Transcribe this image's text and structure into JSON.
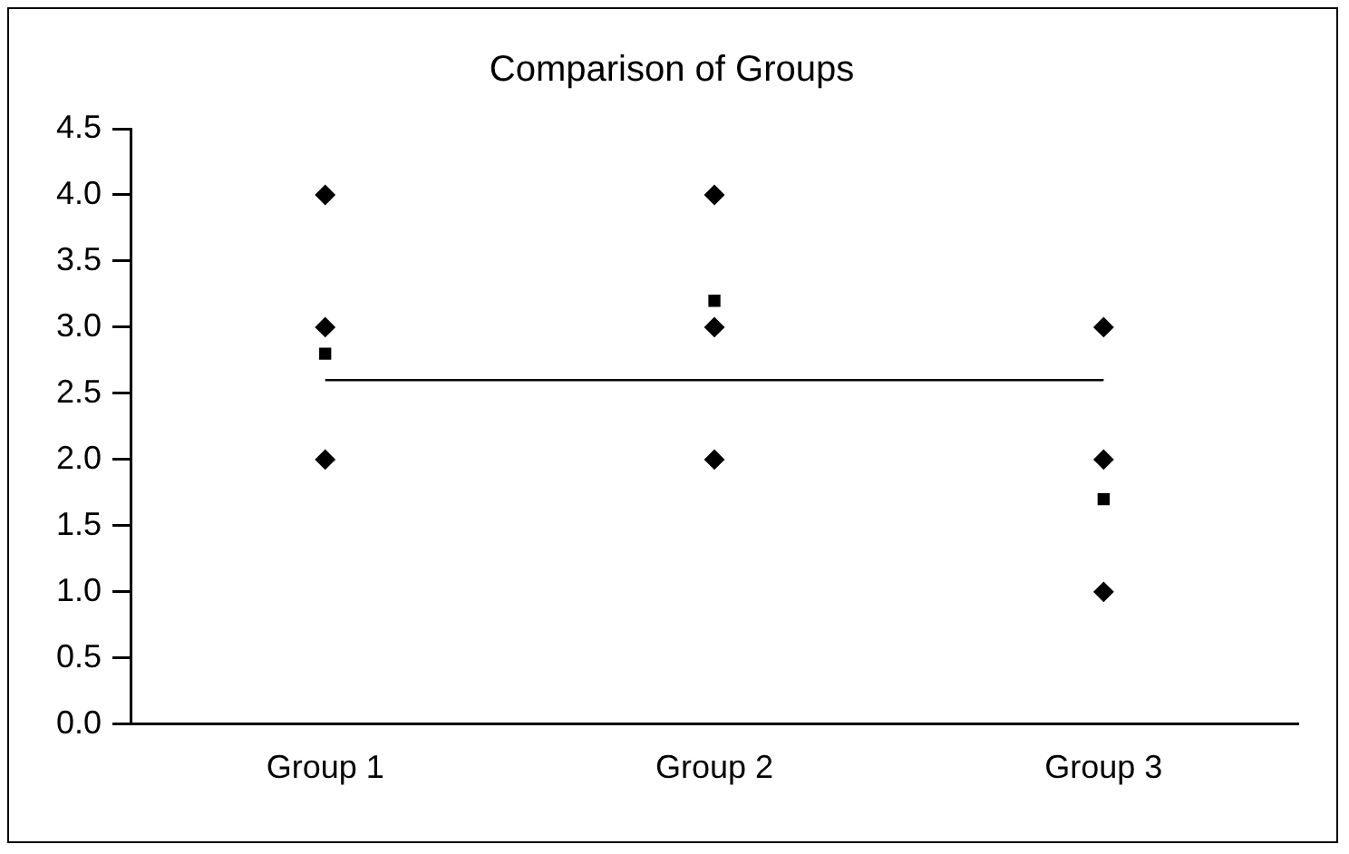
{
  "chart_data": {
    "type": "scatter",
    "title": "Comparison of Groups",
    "categories": [
      "Group 1",
      "Group 2",
      "Group 3"
    ],
    "ylim": [
      0,
      4.5
    ],
    "yticks": [
      {
        "value": 0,
        "label": "0.0"
      },
      {
        "value": 0.5,
        "label": "0.5"
      },
      {
        "value": 1,
        "label": "1.0"
      },
      {
        "value": 1.5,
        "label": "1.5"
      },
      {
        "value": 2,
        "label": "2.0"
      },
      {
        "value": 2.5,
        "label": "2.5"
      },
      {
        "value": 3,
        "label": "3.0"
      },
      {
        "value": 3.5,
        "label": "3.5"
      },
      {
        "value": 4,
        "label": "4.0"
      },
      {
        "value": 4.5,
        "label": "4.5"
      }
    ],
    "grid": false,
    "legend": false,
    "series": [
      {
        "type": "scatter",
        "marker": "diamond",
        "color": "#000000",
        "x": [
          "Group 1",
          "Group 1",
          "Group 1",
          "Group 2",
          "Group 2",
          "Group 2",
          "Group 3",
          "Group 3",
          "Group 3"
        ],
        "values": [
          4,
          3,
          2,
          4,
          3,
          2,
          3,
          2,
          1
        ]
      },
      {
        "type": "scatter",
        "marker": "square",
        "color": "#000000",
        "x": [
          "Group 1",
          "Group 2",
          "Group 3"
        ],
        "values": [
          2.8,
          3.2,
          1.7
        ]
      },
      {
        "type": "line",
        "marker": "none",
        "color": "#000000",
        "x": [
          "Group 1",
          "Group 2",
          "Group 3"
        ],
        "values": [
          2.6,
          2.6,
          2.6
        ]
      }
    ]
  }
}
